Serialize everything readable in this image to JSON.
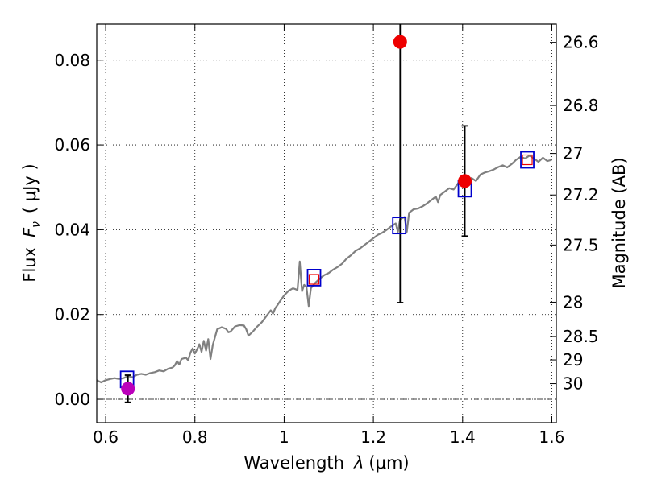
{
  "chart_data": {
    "type": "scatter",
    "xlabel_main": "Wavelength",
    "xlabel_symbol": "λ",
    "xlabel_unit": "(μm)",
    "ylabel_main": "Flux",
    "ylabel_symbol": "F",
    "ylabel_symbol_sub": "ν",
    "ylabel_unit": "( μJy )",
    "y2label": "Magnitude (AB)",
    "xlim": [
      0.58,
      1.61
    ],
    "ylim": [
      -0.0055,
      0.0885
    ],
    "xticks": [
      0.6,
      0.8,
      1.0,
      1.2,
      1.4,
      1.6
    ],
    "xtick_labels": [
      "0.6",
      "0.8",
      "1",
      "1.2",
      "1.4",
      "1.6"
    ],
    "yticks": [
      0.0,
      0.02,
      0.04,
      0.06,
      0.08
    ],
    "ytick_labels": [
      "0.00",
      "0.02",
      "0.04",
      "0.06",
      "0.08"
    ],
    "magnitude_ticks": [
      {
        "label": "26.6",
        "flux": 0.0842
      },
      {
        "label": "26.8",
        "flux": 0.0693
      },
      {
        "label": "27",
        "flux": 0.058
      },
      {
        "label": "27.2",
        "flux": 0.0482
      },
      {
        "label": "27.5",
        "flux": 0.0364
      },
      {
        "label": "28",
        "flux": 0.0229
      },
      {
        "label": "28.5",
        "flux": 0.0148
      },
      {
        "label": "29",
        "flux": 0.0093
      },
      {
        "label": "30",
        "flux": 0.0037
      }
    ],
    "grid": true,
    "zero_line": true,
    "colors": {
      "model": "#808080",
      "model_photometry": "#0000cc",
      "detections": "#ee0000",
      "optical_point": "#bb00bb",
      "errorbars": "#000000"
    },
    "series": [
      {
        "kind": "model_spectrum",
        "points": [
          [
            0.58,
            0.0045
          ],
          [
            0.59,
            0.004
          ],
          [
            0.6,
            0.0045
          ],
          [
            0.61,
            0.0048
          ],
          [
            0.62,
            0.005
          ],
          [
            0.63,
            0.0048
          ],
          [
            0.64,
            0.005
          ],
          [
            0.65,
            0.0055
          ],
          [
            0.66,
            0.0052
          ],
          [
            0.67,
            0.0058
          ],
          [
            0.68,
            0.006
          ],
          [
            0.69,
            0.0058
          ],
          [
            0.7,
            0.0062
          ],
          [
            0.71,
            0.0064
          ],
          [
            0.72,
            0.0068
          ],
          [
            0.73,
            0.0066
          ],
          [
            0.74,
            0.0072
          ],
          [
            0.75,
            0.0075
          ],
          [
            0.755,
            0.008
          ],
          [
            0.76,
            0.009
          ],
          [
            0.765,
            0.0082
          ],
          [
            0.77,
            0.0095
          ],
          [
            0.78,
            0.0098
          ],
          [
            0.785,
            0.0092
          ],
          [
            0.79,
            0.011
          ],
          [
            0.795,
            0.012
          ],
          [
            0.8,
            0.0108
          ],
          [
            0.805,
            0.0118
          ],
          [
            0.81,
            0.013
          ],
          [
            0.815,
            0.0112
          ],
          [
            0.82,
            0.0138
          ],
          [
            0.825,
            0.0115
          ],
          [
            0.83,
            0.0142
          ],
          [
            0.835,
            0.0095
          ],
          [
            0.84,
            0.0128
          ],
          [
            0.85,
            0.0165
          ],
          [
            0.86,
            0.017
          ],
          [
            0.87,
            0.0166
          ],
          [
            0.875,
            0.0158
          ],
          [
            0.88,
            0.016
          ],
          [
            0.89,
            0.0172
          ],
          [
            0.9,
            0.0175
          ],
          [
            0.91,
            0.0174
          ],
          [
            0.915,
            0.0165
          ],
          [
            0.92,
            0.015
          ],
          [
            0.93,
            0.016
          ],
          [
            0.94,
            0.0172
          ],
          [
            0.95,
            0.0182
          ],
          [
            0.96,
            0.0196
          ],
          [
            0.97,
            0.021
          ],
          [
            0.975,
            0.0202
          ],
          [
            0.98,
            0.0215
          ],
          [
            0.985,
            0.0222
          ],
          [
            0.99,
            0.023
          ],
          [
            1.0,
            0.0245
          ],
          [
            1.01,
            0.0256
          ],
          [
            1.02,
            0.0262
          ],
          [
            1.03,
            0.0258
          ],
          [
            1.035,
            0.0325
          ],
          [
            1.04,
            0.0255
          ],
          [
            1.045,
            0.027
          ],
          [
            1.05,
            0.0265
          ],
          [
            1.055,
            0.022
          ],
          [
            1.06,
            0.0262
          ],
          [
            1.07,
            0.0275
          ],
          [
            1.08,
            0.0285
          ],
          [
            1.09,
            0.0293
          ],
          [
            1.1,
            0.0298
          ],
          [
            1.11,
            0.0306
          ],
          [
            1.12,
            0.0312
          ],
          [
            1.13,
            0.032
          ],
          [
            1.14,
            0.0332
          ],
          [
            1.15,
            0.034
          ],
          [
            1.16,
            0.035
          ],
          [
            1.17,
            0.0356
          ],
          [
            1.18,
            0.0364
          ],
          [
            1.19,
            0.0372
          ],
          [
            1.2,
            0.038
          ],
          [
            1.21,
            0.0388
          ],
          [
            1.22,
            0.0393
          ],
          [
            1.23,
            0.04
          ],
          [
            1.24,
            0.0408
          ],
          [
            1.25,
            0.0415
          ],
          [
            1.255,
            0.0395
          ],
          [
            1.26,
            0.0425
          ],
          [
            1.27,
            0.043
          ],
          [
            1.275,
            0.0395
          ],
          [
            1.28,
            0.044
          ],
          [
            1.29,
            0.0448
          ],
          [
            1.3,
            0.045
          ],
          [
            1.31,
            0.0455
          ],
          [
            1.32,
            0.0462
          ],
          [
            1.33,
            0.047
          ],
          [
            1.34,
            0.0478
          ],
          [
            1.345,
            0.0465
          ],
          [
            1.35,
            0.0482
          ],
          [
            1.36,
            0.049
          ],
          [
            1.37,
            0.0498
          ],
          [
            1.38,
            0.0495
          ],
          [
            1.39,
            0.051
          ],
          [
            1.4,
            0.0518
          ],
          [
            1.41,
            0.0505
          ],
          [
            1.42,
            0.0522
          ],
          [
            1.43,
            0.0515
          ],
          [
            1.44,
            0.053
          ],
          [
            1.45,
            0.0535
          ],
          [
            1.46,
            0.0538
          ],
          [
            1.47,
            0.0542
          ],
          [
            1.48,
            0.0548
          ],
          [
            1.49,
            0.0552
          ],
          [
            1.5,
            0.0547
          ],
          [
            1.51,
            0.0555
          ],
          [
            1.52,
            0.0565
          ],
          [
            1.53,
            0.0572
          ],
          [
            1.54,
            0.0568
          ],
          [
            1.55,
            0.0575
          ],
          [
            1.56,
            0.0568
          ],
          [
            1.57,
            0.056
          ],
          [
            1.58,
            0.057
          ],
          [
            1.59,
            0.0562
          ],
          [
            1.6,
            0.0565
          ]
        ]
      },
      {
        "kind": "model_band_flux",
        "marker": "open-square",
        "points": [
          [
            0.648,
            0.0047
          ],
          [
            1.067,
            0.0287
          ],
          [
            1.258,
            0.041
          ],
          [
            1.405,
            0.0497
          ],
          [
            1.545,
            0.0565
          ]
        ]
      },
      {
        "kind": "model_band_flux_red",
        "marker": "small-open-square",
        "points": [
          [
            1.067,
            0.0283
          ],
          [
            1.545,
            0.0565
          ]
        ]
      },
      {
        "kind": "observed",
        "marker": "filled-circle",
        "points": [
          {
            "x": 0.65,
            "y": 0.0025,
            "err": 0.0032,
            "color": "optical_point"
          },
          {
            "x": 1.26,
            "y": 0.0843,
            "err": 0.0615,
            "color": "detections"
          },
          {
            "x": 1.405,
            "y": 0.0515,
            "err": 0.013,
            "color": "detections"
          }
        ]
      }
    ]
  }
}
